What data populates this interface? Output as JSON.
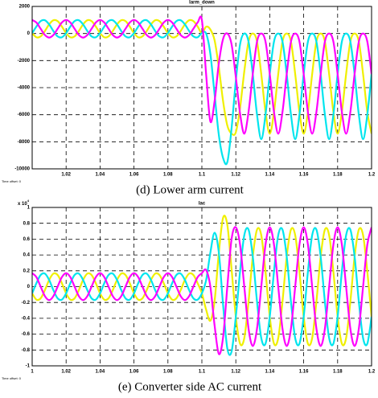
{
  "chart_data": [
    {
      "type": "line",
      "title": "Iarm_down",
      "caption": "(d) Lower arm current",
      "x_offset_label": "Time offset: 0",
      "xlim": [
        1,
        1.2
      ],
      "xticks": [
        1.02,
        1.04,
        1.06,
        1.08,
        1.1,
        1.12,
        1.14,
        1.16,
        1.18,
        1.2
      ],
      "ylim": [
        -10000,
        2000
      ],
      "yticks": [
        2000,
        0,
        -2000,
        -4000,
        -6000,
        -8000,
        -10000
      ],
      "grid": true,
      "x": [
        1,
        1.0025,
        1.005,
        1.0075,
        1.01,
        1.0125,
        1.015,
        1.0175,
        1.02,
        1.0225,
        1.025,
        1.0275,
        1.03,
        1.0325,
        1.035,
        1.0375,
        1.04,
        1.0425,
        1.045,
        1.0475,
        1.05,
        1.0525,
        1.055,
        1.0575,
        1.06,
        1.0625,
        1.065,
        1.0675,
        1.07,
        1.0725,
        1.075,
        1.0775,
        1.08,
        1.0825,
        1.085,
        1.0875,
        1.09,
        1.0925,
        1.095,
        1.0975,
        1.1,
        1.1025,
        1.105,
        1.1075,
        1.11,
        1.1125,
        1.115,
        1.1175,
        1.12,
        1.1225,
        1.125,
        1.1275,
        1.13,
        1.1325,
        1.135,
        1.1375,
        1.14,
        1.1425,
        1.145,
        1.1475,
        1.15,
        1.1525,
        1.155,
        1.1575,
        1.16,
        1.1625,
        1.165,
        1.1675,
        1.17,
        1.1725,
        1.175,
        1.1775,
        1.18,
        1.1825,
        1.185,
        1.1875,
        1.19,
        1.1925,
        1.195,
        1.1975,
        1.2
      ],
      "series": [
        {
          "color": "#f0f000",
          "values": [
            25,
            -278,
            -213,
            182,
            675,
            978,
            913,
            518,
            25,
            -278,
            -213,
            182,
            675,
            978,
            913,
            518,
            25,
            -278,
            -213,
            182,
            675,
            978,
            913,
            518,
            25,
            -278,
            -213,
            182,
            675,
            978,
            913,
            518,
            25,
            -278,
            -213,
            182,
            675,
            978,
            913,
            518,
            25,
            500,
            300,
            -500,
            -2500,
            -5000,
            -6800,
            -7400,
            -7300,
            -5500,
            -2800,
            -600,
            0,
            -600,
            -3000,
            -5800,
            -7400,
            -5800,
            -3000,
            -600,
            0,
            -600,
            -3000,
            -5800,
            -7400,
            -5800,
            -3000,
            -600,
            0,
            -600,
            -3000,
            -5800,
            -7400,
            -5800,
            -3000,
            -600,
            0,
            -600,
            -3000,
            -5800,
            -7400
          ]
        },
        {
          "color": "#00e5ee",
          "values": [
            25,
            518,
            913,
            978,
            675,
            182,
            -213,
            -278,
            25,
            518,
            913,
            978,
            675,
            182,
            -213,
            -278,
            25,
            518,
            913,
            978,
            675,
            182,
            -213,
            -278,
            25,
            518,
            913,
            978,
            675,
            182,
            -213,
            -278,
            25,
            518,
            913,
            978,
            675,
            182,
            -213,
            -278,
            25,
            0,
            -1500,
            -4500,
            -7500,
            -9200,
            -9500,
            -7000,
            -3500,
            -800,
            0,
            -600,
            -3000,
            -6000,
            -7800,
            -6000,
            -3000,
            -600,
            0,
            -600,
            -3000,
            -6000,
            -7800,
            -6000,
            -3000,
            -600,
            0,
            -600,
            -3000,
            -6000,
            -7800,
            -6000,
            -3000,
            -600,
            0,
            -600,
            -3000,
            -6000,
            -7800,
            -6000,
            -3000
          ]
        },
        {
          "color": "#ff00ff",
          "values": [
            1000,
            810,
            350,
            -110,
            -300,
            -110,
            350,
            810,
            1000,
            810,
            350,
            -110,
            -300,
            -110,
            350,
            810,
            1000,
            810,
            350,
            -110,
            -300,
            -110,
            350,
            810,
            1000,
            810,
            350,
            -110,
            -300,
            -110,
            350,
            810,
            1000,
            810,
            350,
            -110,
            -300,
            -110,
            350,
            810,
            1000,
            -3000,
            -6500,
            -5000,
            -2200,
            -400,
            0,
            -800,
            -3200,
            -5900,
            -7400,
            -5800,
            -3000,
            -600,
            0,
            -600,
            -3000,
            -5800,
            -7400,
            -5800,
            -3000,
            -600,
            0,
            -600,
            -3000,
            -5800,
            -7400,
            -5800,
            -3000,
            -600,
            0,
            -600,
            -3000,
            -5800,
            -7400,
            -5800,
            -3000,
            -600,
            0,
            -600,
            -3000
          ]
        }
      ]
    },
    {
      "type": "line",
      "title": "Iac",
      "caption": "(e) Converter side AC current",
      "x_offset_label": "Time offset: 0",
      "y_multiplier": "x 10",
      "y_multiplier_exponent": "4",
      "xlim": [
        1,
        1.2
      ],
      "xticks": [
        1,
        1.02,
        1.04,
        1.06,
        1.08,
        1.1,
        1.12,
        1.14,
        1.16,
        1.18,
        1.2
      ],
      "ylim": [
        -1,
        1
      ],
      "yticks": [
        1,
        0.8,
        0.6,
        0.4,
        0.2,
        0,
        -0.2,
        -0.4,
        -0.6,
        -0.8,
        -1
      ],
      "grid": true,
      "x": [
        1,
        1.0025,
        1.005,
        1.0075,
        1.01,
        1.0125,
        1.015,
        1.0175,
        1.02,
        1.0225,
        1.025,
        1.0275,
        1.03,
        1.0325,
        1.035,
        1.0375,
        1.04,
        1.0425,
        1.045,
        1.0475,
        1.05,
        1.0525,
        1.055,
        1.0575,
        1.06,
        1.0625,
        1.065,
        1.0675,
        1.07,
        1.0725,
        1.075,
        1.0775,
        1.08,
        1.0825,
        1.085,
        1.0875,
        1.09,
        1.0925,
        1.095,
        1.0975,
        1.1,
        1.1025,
        1.105,
        1.1075,
        1.11,
        1.1125,
        1.115,
        1.1175,
        1.12,
        1.1225,
        1.125,
        1.1275,
        1.13,
        1.1325,
        1.135,
        1.1375,
        1.14,
        1.1425,
        1.145,
        1.1475,
        1.15,
        1.1525,
        1.155,
        1.1575,
        1.16,
        1.1625,
        1.165,
        1.1675,
        1.17,
        1.1725,
        1.175,
        1.1775,
        1.18,
        1.1825,
        1.185,
        1.1875,
        1.19,
        1.1925,
        1.195,
        1.1975,
        1.2
      ],
      "series": [
        {
          "color": "#f0f000",
          "values": [
            -0.085,
            -0.164,
            -0.147,
            -0.044,
            0.085,
            0.164,
            0.147,
            0.044,
            -0.085,
            -0.164,
            -0.147,
            -0.044,
            0.085,
            0.164,
            0.147,
            0.044,
            -0.085,
            -0.164,
            -0.147,
            -0.044,
            0.085,
            0.164,
            0.147,
            0.044,
            -0.085,
            -0.164,
            -0.147,
            -0.044,
            0.085,
            0.164,
            0.147,
            0.044,
            -0.085,
            -0.164,
            -0.147,
            -0.044,
            0.085,
            0.164,
            0.147,
            0.044,
            -0.085,
            -0.29,
            -0.43,
            -0.18,
            0.43,
            0.87,
            0.78,
            0.22,
            -0.38,
            -0.72,
            -0.65,
            -0.19,
            0.38,
            0.72,
            0.65,
            0.19,
            -0.38,
            -0.72,
            -0.65,
            -0.19,
            0.38,
            0.72,
            0.65,
            0.19,
            -0.38,
            -0.72,
            -0.65,
            -0.19,
            0.38,
            0.72,
            0.65,
            0.19,
            -0.38,
            -0.72,
            -0.65,
            -0.19,
            0.38,
            0.72,
            0.65,
            0.19,
            -0.38
          ]
        },
        {
          "color": "#00e5ee",
          "values": [
            -0.085,
            0.044,
            0.147,
            0.164,
            0.085,
            -0.044,
            -0.147,
            -0.164,
            -0.085,
            0.044,
            0.147,
            0.164,
            0.085,
            -0.044,
            -0.147,
            -0.164,
            -0.085,
            0.044,
            0.147,
            0.164,
            0.085,
            -0.044,
            -0.147,
            -0.164,
            -0.085,
            0.044,
            0.147,
            0.164,
            0.085,
            -0.044,
            -0.147,
            -0.164,
            -0.085,
            0.044,
            0.147,
            0.164,
            0.085,
            -0.044,
            -0.147,
            -0.164,
            -0.085,
            0.08,
            0.43,
            0.68,
            0.43,
            -0.23,
            -0.78,
            -0.82,
            -0.38,
            0.19,
            0.65,
            0.72,
            0.38,
            -0.19,
            -0.65,
            -0.72,
            -0.38,
            0.19,
            0.65,
            0.72,
            0.38,
            -0.19,
            -0.65,
            -0.72,
            -0.38,
            0.19,
            0.65,
            0.72,
            0.38,
            -0.19,
            -0.65,
            -0.72,
            -0.38,
            0.19,
            0.65,
            0.72,
            0.38,
            -0.19,
            -0.65,
            -0.72,
            -0.38
          ]
        },
        {
          "color": "#ff00ff",
          "values": [
            0.17,
            0.12,
            0,
            -0.12,
            -0.17,
            -0.12,
            0,
            0.12,
            0.17,
            0.12,
            0,
            -0.12,
            -0.17,
            -0.12,
            0,
            0.12,
            0.17,
            0.12,
            0,
            -0.12,
            -0.17,
            -0.12,
            0,
            0.12,
            0.17,
            0.12,
            0,
            -0.12,
            -0.17,
            -0.12,
            0,
            0.12,
            0.17,
            0.12,
            0,
            -0.12,
            -0.17,
            -0.12,
            0,
            0.12,
            0.17,
            0.21,
            0,
            -0.49,
            -0.85,
            -0.64,
            0,
            0.6,
            0.75,
            0.53,
            0,
            -0.53,
            -0.75,
            -0.53,
            0,
            0.53,
            0.75,
            0.53,
            0,
            -0.53,
            -0.75,
            -0.53,
            0,
            0.53,
            0.75,
            0.53,
            0,
            -0.53,
            -0.75,
            -0.53,
            0,
            0.53,
            0.75,
            0.53,
            0,
            -0.53,
            -0.75,
            -0.53,
            0,
            0.53,
            0.75
          ]
        }
      ]
    }
  ]
}
